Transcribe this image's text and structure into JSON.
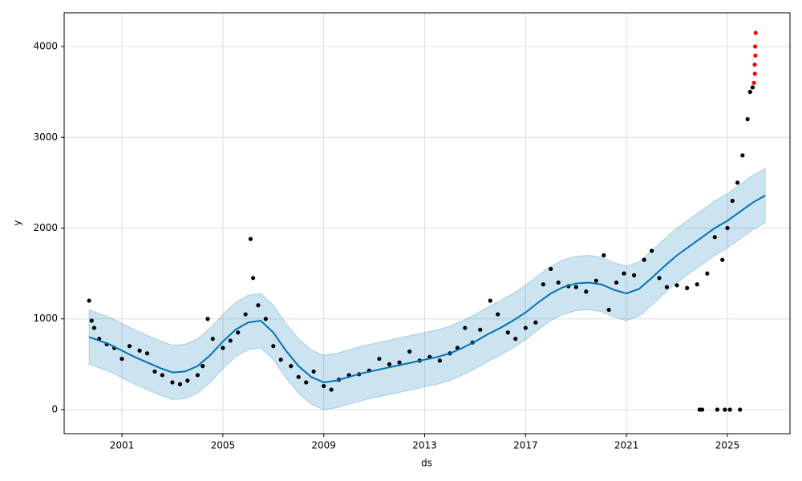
{
  "chart_data": {
    "type": "forecast",
    "xlabel": "ds",
    "ylabel": "y",
    "xlim": [
      1998.71,
      2027.48
    ],
    "ylim": [
      -265,
      4371
    ],
    "xticks": [
      2001,
      2005,
      2009,
      2013,
      2017,
      2021,
      2025
    ],
    "yticks": [
      0,
      1000,
      2000,
      3000,
      4000
    ],
    "grid": true,
    "band": {
      "color": "#0072b2",
      "x": [
        1999.7,
        2000.5,
        2001,
        2001.5,
        2002,
        2002.5,
        2003,
        2003.5,
        2004,
        2004.5,
        2005,
        2005.5,
        2006,
        2006.5,
        2007,
        2007.5,
        2008,
        2008.5,
        2009,
        2009.5,
        2010,
        2010.5,
        2011,
        2011.5,
        2012,
        2012.5,
        2013,
        2013.5,
        2014,
        2014.5,
        2015,
        2015.5,
        2016,
        2016.5,
        2017,
        2017.5,
        2018,
        2018.5,
        2019,
        2019.5,
        2020,
        2020.5,
        2021,
        2021.5,
        2022,
        2022.5,
        2023,
        2023.5,
        2024,
        2024.5,
        2025,
        2025.5,
        2026,
        2026.5
      ],
      "upper": [
        1100,
        1020,
        950,
        880,
        820,
        760,
        710,
        720,
        780,
        900,
        1050,
        1180,
        1260,
        1280,
        1150,
        950,
        780,
        660,
        600,
        620,
        660,
        700,
        730,
        760,
        790,
        820,
        850,
        880,
        920,
        980,
        1050,
        1130,
        1200,
        1280,
        1370,
        1480,
        1580,
        1650,
        1690,
        1700,
        1680,
        1620,
        1580,
        1630,
        1750,
        1880,
        2000,
        2100,
        2200,
        2300,
        2380,
        2480,
        2580,
        2660
      ],
      "lower": [
        500,
        420,
        350,
        280,
        220,
        160,
        110,
        120,
        180,
        300,
        450,
        580,
        660,
        680,
        550,
        350,
        180,
        60,
        0,
        20,
        60,
        100,
        130,
        160,
        190,
        220,
        250,
        280,
        320,
        380,
        450,
        530,
        600,
        680,
        770,
        880,
        980,
        1050,
        1090,
        1100,
        1080,
        1020,
        980,
        1030,
        1150,
        1280,
        1400,
        1500,
        1600,
        1700,
        1780,
        1880,
        1980,
        2060
      ]
    },
    "forecast": {
      "color": "#0072b2",
      "x": [
        1999.7,
        2000.5,
        2001,
        2001.5,
        2002,
        2002.5,
        2003,
        2003.5,
        2004,
        2004.5,
        2005,
        2005.5,
        2006,
        2006.5,
        2007,
        2007.5,
        2008,
        2008.5,
        2009,
        2009.5,
        2010,
        2010.5,
        2011,
        2011.5,
        2012,
        2012.5,
        2013,
        2013.5,
        2014,
        2014.5,
        2015,
        2015.5,
        2016,
        2016.5,
        2017,
        2017.5,
        2018,
        2018.5,
        2019,
        2019.5,
        2020,
        2020.5,
        2021,
        2021.5,
        2022,
        2022.5,
        2023,
        2023.5,
        2024,
        2024.5,
        2025,
        2025.5,
        2026,
        2026.5
      ],
      "values": [
        800,
        720,
        650,
        580,
        520,
        460,
        410,
        420,
        480,
        600,
        750,
        880,
        960,
        980,
        850,
        650,
        480,
        360,
        300,
        320,
        360,
        400,
        430,
        460,
        490,
        520,
        550,
        580,
        620,
        680,
        750,
        830,
        900,
        980,
        1070,
        1180,
        1280,
        1350,
        1390,
        1400,
        1380,
        1320,
        1280,
        1330,
        1450,
        1580,
        1700,
        1800,
        1900,
        2000,
        2080,
        2180,
        2280,
        2360
      ]
    },
    "observed": {
      "color": "#000000",
      "x": [
        1999.7,
        1999.8,
        1999.9,
        2000.1,
        2000.4,
        2000.7,
        2001,
        2001.3,
        2001.7,
        2002,
        2002.3,
        2002.6,
        2003,
        2003.3,
        2003.6,
        2004,
        2004.2,
        2004.4,
        2004.6,
        2005,
        2005.3,
        2005.6,
        2005.9,
        2006.1,
        2006.2,
        2006.4,
        2006.7,
        2007,
        2007.3,
        2007.7,
        2008,
        2008.3,
        2008.6,
        2009,
        2009.3,
        2009.6,
        2010,
        2010.4,
        2010.8,
        2011.2,
        2011.6,
        2012,
        2012.4,
        2012.8,
        2013.2,
        2013.6,
        2014,
        2014.3,
        2014.6,
        2014.9,
        2015.2,
        2015.6,
        2015.9,
        2016.3,
        2016.6,
        2017,
        2017.4,
        2017.7,
        2018,
        2018.3,
        2018.7,
        2019,
        2019.4,
        2019.8,
        2020.1,
        2020.3,
        2020.6,
        2020.9,
        2021.3,
        2021.7,
        2022,
        2022.3,
        2022.6,
        2023,
        2023.4,
        2023.8,
        2024.2,
        2024.5,
        2024.8,
        2025,
        2025.2,
        2025.4,
        2025.6,
        2025.8,
        2025.9,
        2026,
        2023.9,
        2024.0,
        2024.6,
        2024.9,
        2025.1,
        2025.5
      ],
      "values": [
        1200,
        980,
        900,
        780,
        720,
        680,
        560,
        700,
        650,
        620,
        420,
        380,
        300,
        280,
        320,
        380,
        480,
        1000,
        780,
        680,
        760,
        850,
        1050,
        1880,
        1450,
        1150,
        1000,
        700,
        550,
        480,
        360,
        300,
        420,
        260,
        220,
        330,
        380,
        390,
        430,
        560,
        500,
        520,
        640,
        540,
        580,
        540,
        620,
        680,
        900,
        740,
        880,
        1200,
        1050,
        850,
        780,
        900,
        960,
        1380,
        1550,
        1400,
        1360,
        1350,
        1300,
        1420,
        1700,
        1100,
        1400,
        1500,
        1480,
        1650,
        1750,
        1450,
        1350,
        1370,
        1340,
        1380,
        1500,
        1900,
        1650,
        2000,
        2300,
        2500,
        2800,
        3200,
        3500,
        3550,
        0,
        0,
        0,
        0,
        0,
        0
      ]
    },
    "future": {
      "color": "#ff0000",
      "x": [
        2026.05,
        2026.08,
        2026.09,
        2026.1,
        2026.11,
        2026.12
      ],
      "values": [
        3600,
        3800,
        3700,
        4000,
        3900,
        4150
      ]
    }
  }
}
